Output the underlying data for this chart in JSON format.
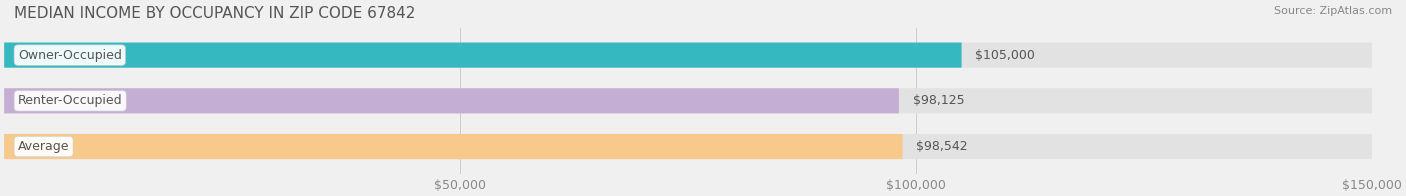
{
  "title": "MEDIAN INCOME BY OCCUPANCY IN ZIP CODE 67842",
  "source": "Source: ZipAtlas.com",
  "categories": [
    "Owner-Occupied",
    "Renter-Occupied",
    "Average"
  ],
  "values": [
    105000,
    98125,
    98542
  ],
  "bar_colors": [
    "#35b8c0",
    "#c4aed4",
    "#f7c98a"
  ],
  "bar_edge_colors": [
    "#35b8c0",
    "#c4aed4",
    "#f7c98a"
  ],
  "value_labels": [
    "$105,000",
    "$98,125",
    "$98,542"
  ],
  "xlim": [
    0,
    150000
  ],
  "xticks": [
    0,
    50000,
    100000,
    150000
  ],
  "xtick_labels": [
    "",
    "$50,000",
    "$100,000",
    "$150,000"
  ],
  "background_color": "#f0f0f0",
  "bar_bg_color": "#e8e8e8",
  "title_fontsize": 11,
  "label_fontsize": 9,
  "tick_fontsize": 9,
  "source_fontsize": 8,
  "bar_height": 0.55,
  "title_color": "#555555",
  "tick_color": "#888888",
  "value_label_color": "#555555",
  "category_label_color": "#555555"
}
